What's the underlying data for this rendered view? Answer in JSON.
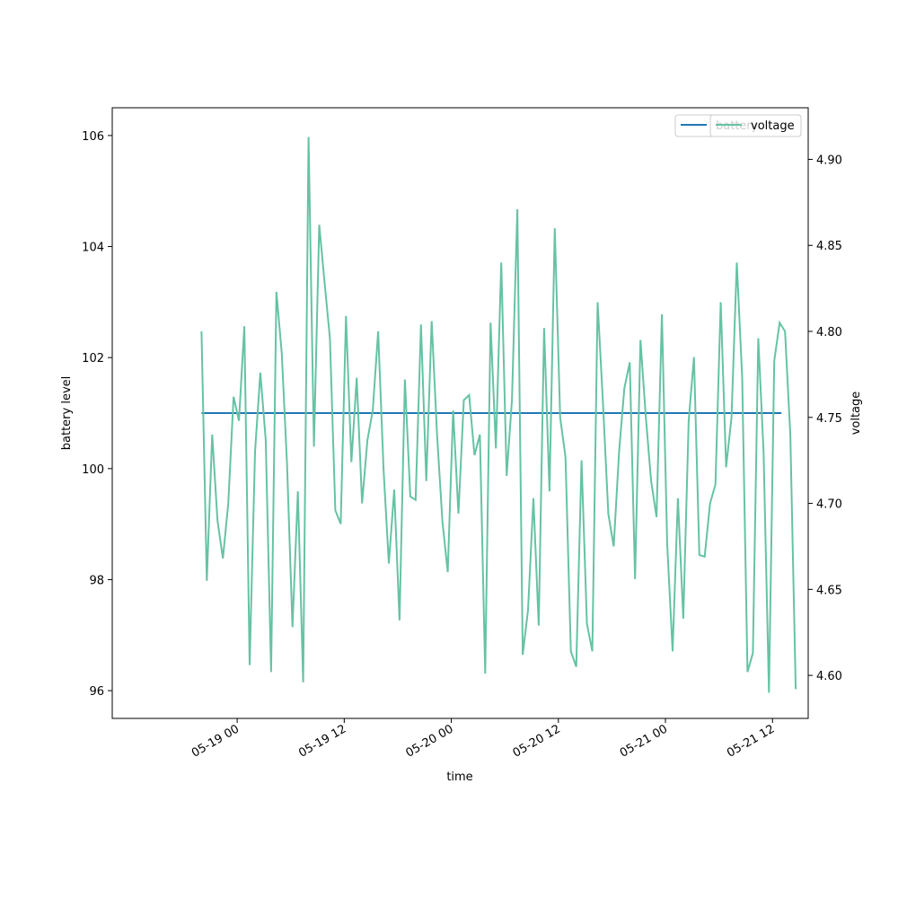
{
  "chart_data": {
    "type": "line",
    "xlabel": "time",
    "ylabel": "battery level",
    "y2label": "voltage",
    "x_range": [
      "2024-05-18 10:00",
      "2024-05-21 16:00"
    ],
    "ylim": [
      95.5,
      106.5
    ],
    "y2lim": [
      4.575,
      4.93
    ],
    "x_ticks": [
      "05-19 00",
      "05-19 12",
      "05-20 00",
      "05-20 12",
      "05-21 00",
      "05-21 12"
    ],
    "y_ticks": [
      "96",
      "98",
      "100",
      "102",
      "104",
      "106"
    ],
    "y2_ticks": [
      "4.60",
      "4.65",
      "4.70",
      "4.75",
      "4.80",
      "4.85",
      "4.90"
    ],
    "grid": false,
    "legend_placement": "top-right",
    "series": [
      {
        "name": "battery",
        "axis": "left",
        "color": "#1f77b4",
        "x_start": "2024-05-18 20:00",
        "x_end": "2024-05-21 13:00",
        "values": [
          101.0,
          101.0
        ]
      },
      {
        "name": "voltage",
        "axis": "right",
        "color": "#66c2a5",
        "x_start": "2024-05-18 20:00",
        "x_step_hours": 0.6,
        "values": [
          4.8,
          4.655,
          4.74,
          4.69,
          4.668,
          4.7,
          4.762,
          4.748,
          4.803,
          4.606,
          4.73,
          4.776,
          4.737,
          4.602,
          4.823,
          4.787,
          4.722,
          4.628,
          4.707,
          4.596,
          4.913,
          4.733,
          4.862,
          4.828,
          4.796,
          4.696,
          4.688,
          4.809,
          4.724,
          4.773,
          4.7,
          4.737,
          4.754,
          4.8,
          4.72,
          4.665,
          4.708,
          4.632,
          4.772,
          4.704,
          4.702,
          4.804,
          4.713,
          4.806,
          4.74,
          4.69,
          4.66,
          4.754,
          4.694,
          4.76,
          4.763,
          4.728,
          4.74,
          4.601,
          4.805,
          4.732,
          4.84,
          4.716,
          4.76,
          4.871,
          4.612,
          4.638,
          4.703,
          4.629,
          4.802,
          4.707,
          4.86,
          4.75,
          4.727,
          4.614,
          4.605,
          4.725,
          4.63,
          4.614,
          4.817,
          4.758,
          4.694,
          4.675,
          4.73,
          4.767,
          4.782,
          4.656,
          4.795,
          4.75,
          4.713,
          4.692,
          4.81,
          4.676,
          4.614,
          4.703,
          4.633,
          4.748,
          4.785,
          4.67,
          4.669,
          4.7,
          4.711,
          4.817,
          4.721,
          4.75,
          4.84,
          4.773,
          4.602,
          4.613,
          4.796,
          4.73,
          4.59,
          4.783,
          4.805,
          4.8,
          4.74,
          4.592
        ]
      }
    ],
    "legend": [
      {
        "label": "battery",
        "color": "#1f77b4"
      },
      {
        "label": "voltage",
        "color": "#66c2a5"
      }
    ]
  }
}
